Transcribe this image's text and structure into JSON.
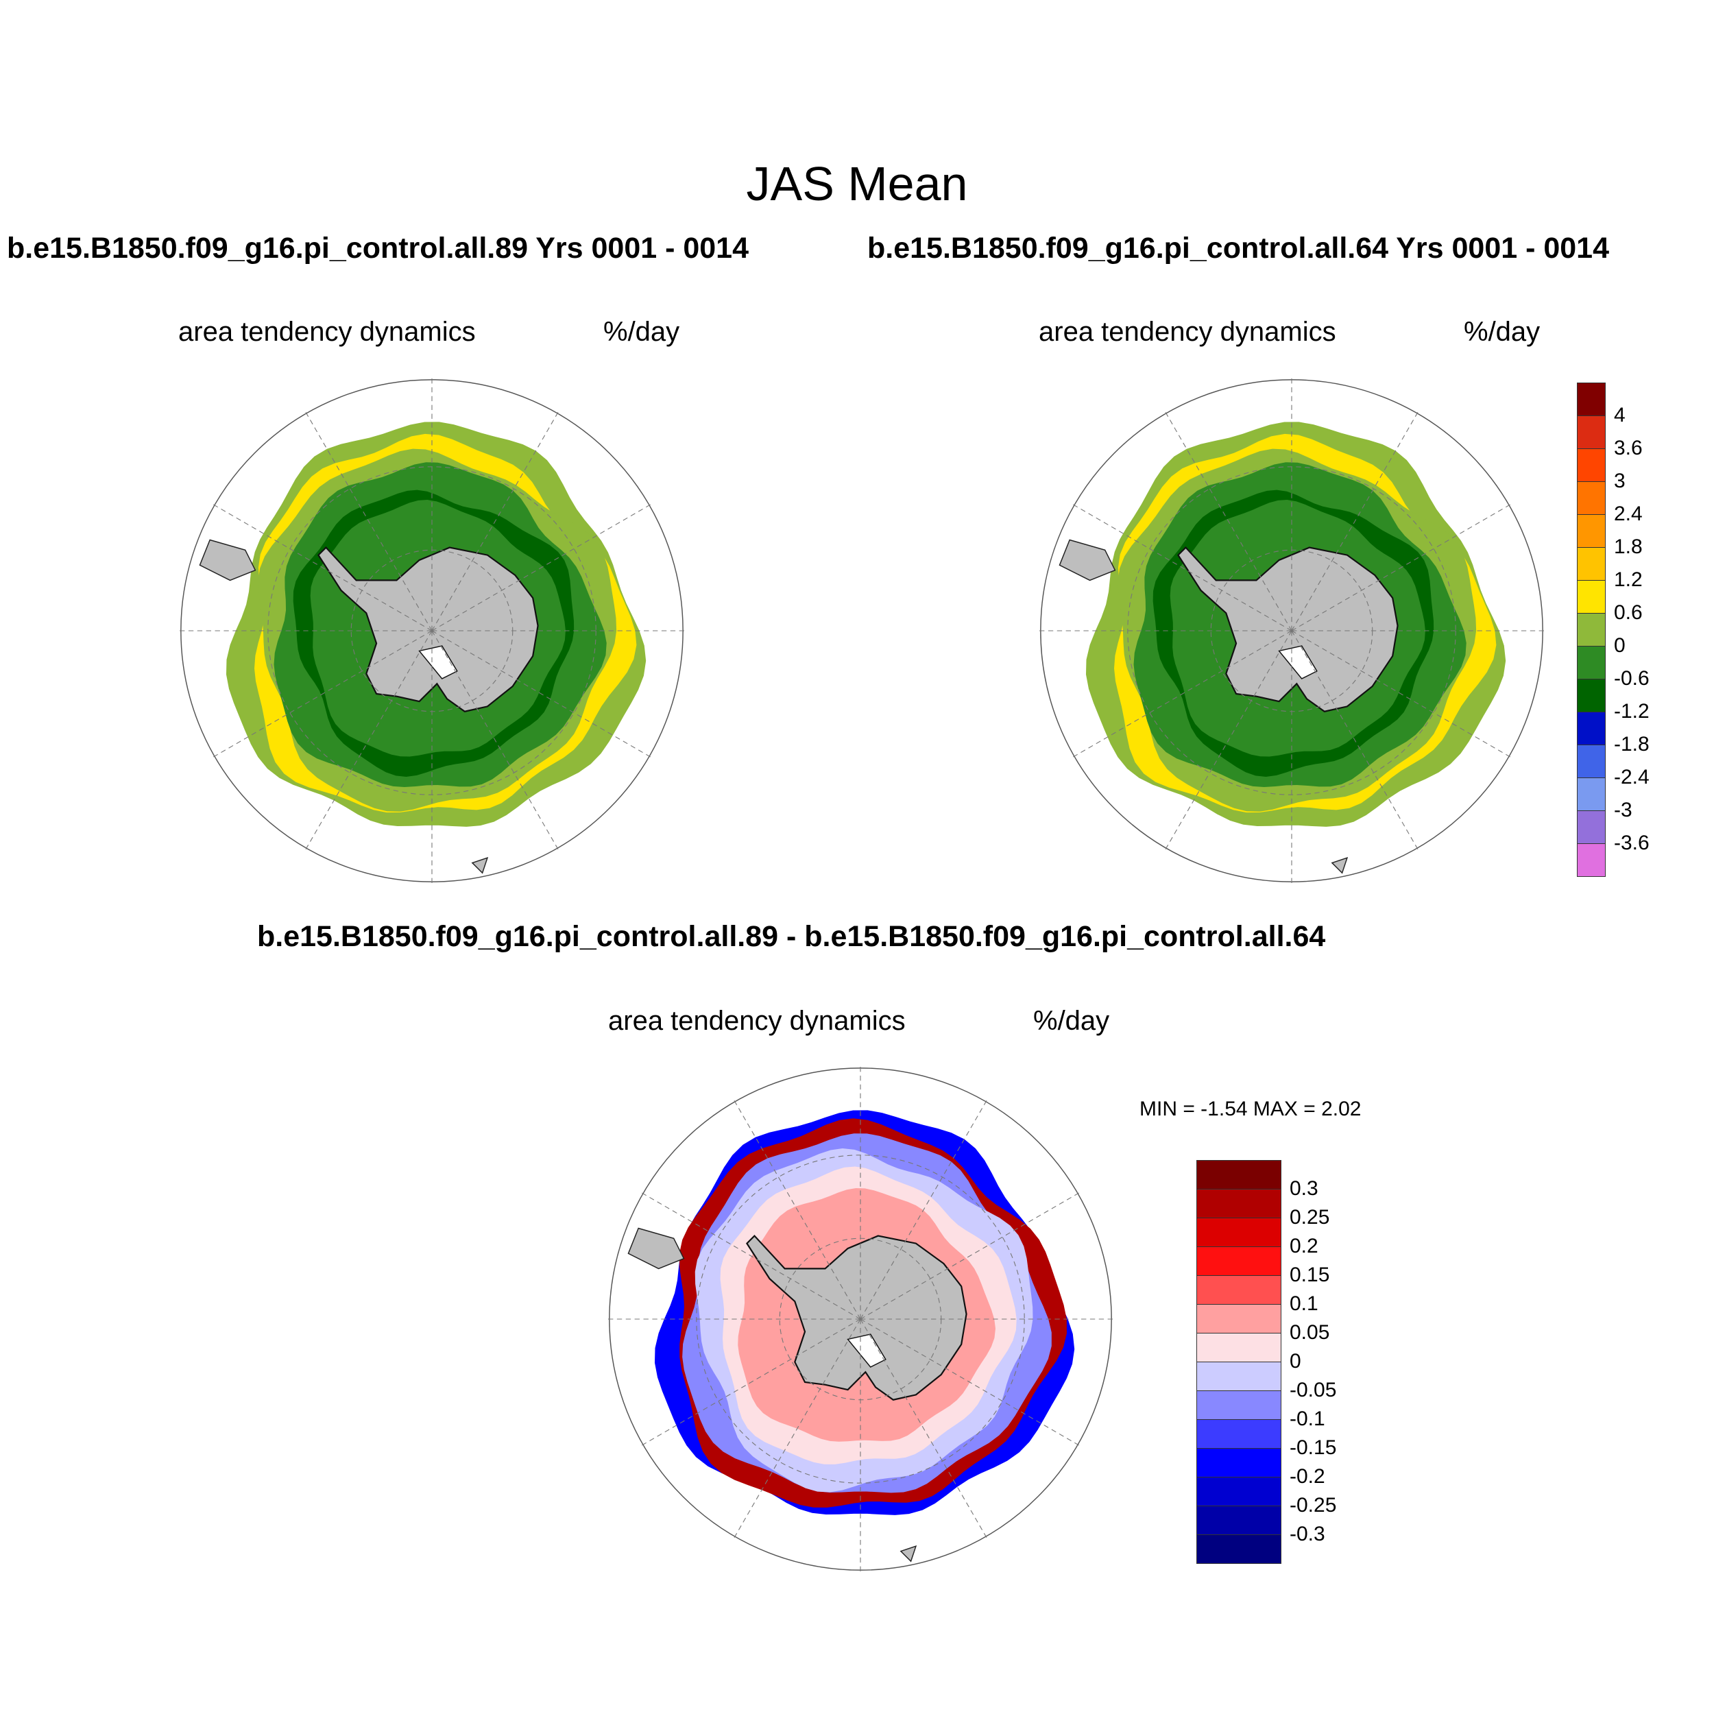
{
  "figure": {
    "title": "JAS Mean"
  },
  "panels": [
    {
      "id": "case1",
      "title": "b.e15.B1850.f09_g16.pi_control.all.89  Yrs 0001 - 0014",
      "left_string": "area tendency dynamics",
      "right_string": "%/day"
    },
    {
      "id": "case2",
      "title": "b.e15.B1850.f09_g16.pi_control.all.64  Yrs 0001 - 0014",
      "left_string": "area tendency dynamics",
      "right_string": "%/day"
    },
    {
      "id": "diff",
      "title": "b.e15.B1850.f09_g16.pi_control.all.89 - b.e15.B1850.f09_g16.pi_control.all.64",
      "left_string": "area tendency dynamics",
      "right_string": "%/day",
      "min_max": "MIN =  -1.54 MAX =   2.02"
    }
  ],
  "colorbars": {
    "main": {
      "labels": [
        "4",
        "3.6",
        "3",
        "2.4",
        "1.8",
        "1.2",
        "0.6",
        "0",
        "-0.6",
        "-1.2",
        "-1.8",
        "-2.4",
        "-3",
        "-3.6"
      ],
      "colors": [
        "#800000",
        "#dc2c12",
        "#ff4500",
        "#ff7400",
        "#ff9600",
        "#ffc300",
        "#ffe400",
        "#8fb93a",
        "#2e8b24",
        "#006400",
        "#0010c8",
        "#4064e8",
        "#7a9af0",
        "#9370db",
        "#e070e0"
      ]
    },
    "diff": {
      "labels": [
        "0.3",
        "0.25",
        "0.2",
        "0.15",
        "0.1",
        "0.05",
        "0",
        "-0.05",
        "-0.1",
        "-0.15",
        "-0.2",
        "-0.25",
        "-0.3"
      ],
      "colors": [
        "#7a0000",
        "#b00000",
        "#dc0000",
        "#ff1010",
        "#ff5050",
        "#ffa0a0",
        "#fde0e4",
        "#ccccff",
        "#8888ff",
        "#3c3cff",
        "#0000ff",
        "#0000d0",
        "#0000a8",
        "#000080"
      ]
    }
  },
  "map_colors": {
    "land": "#bebebe",
    "ocean": "#ffffff",
    "grid": "#777777"
  }
}
